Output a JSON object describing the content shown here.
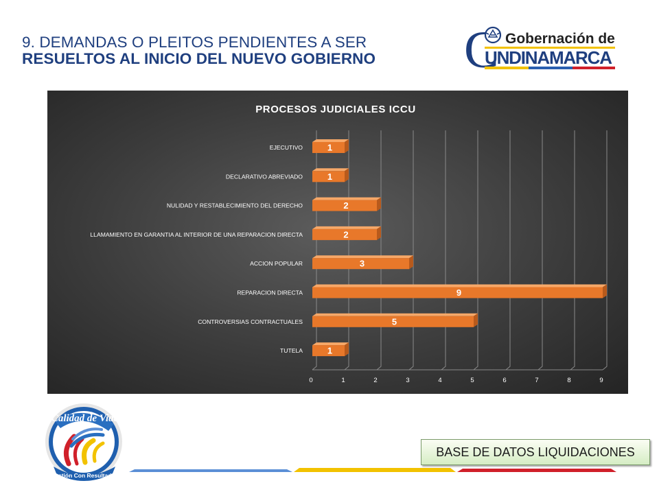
{
  "slide": {
    "title_line1": "9. DEMANDAS O PLEITOS PENDIENTES A SER",
    "title_line2": "RESUELTOS AL INICIO DEL NUEVO GOBIERNO",
    "badge": "BASE DE DATOS LIQUIDACIONES"
  },
  "logos": {
    "gobernacion_line1": "Gobernación de",
    "gobernacion_line2": "UNDINAMARCA",
    "gobernacion_initial": "C",
    "calidad_top": "Calidad de Vida",
    "calidad_bottom": "Gestión Con Resultados"
  },
  "colors": {
    "title": "#1f3f7f",
    "bar_front": "#e8782a",
    "bar_top": "#f7a868",
    "bar_side": "#b85a1c",
    "chart_bg": "#3c3c3c",
    "footer_blue": "#5b8fd6",
    "footer_yellow": "#f2c200",
    "footer_red": "#d0202a"
  },
  "chart_data": {
    "type": "bar",
    "orientation": "horizontal",
    "title": "PROCESOS JUDICIALES ICCU",
    "categories": [
      "EJECUTIVO",
      "DECLARATIVO ABREVIADO",
      "NULIDAD Y RESTABLECIMIENTO DEL DERECHO",
      "LLAMAMIENTO EN GARANTIA AL INTERIOR DE UNA REPARACION DIRECTA",
      "ACCION POPULAR",
      "REPARACION DIRECTA",
      "CONTROVERSIAS CONTRACTUALES",
      "TUTELA"
    ],
    "values": [
      1,
      1,
      2,
      2,
      3,
      9,
      5,
      1
    ],
    "xticks": [
      "0",
      "1",
      "2",
      "3",
      "4",
      "5",
      "6",
      "7",
      "8",
      "9"
    ],
    "xlim": [
      0,
      9
    ],
    "xlabel": "",
    "ylabel": "",
    "grid": "vertical",
    "data_labels": true,
    "style": "3d"
  }
}
